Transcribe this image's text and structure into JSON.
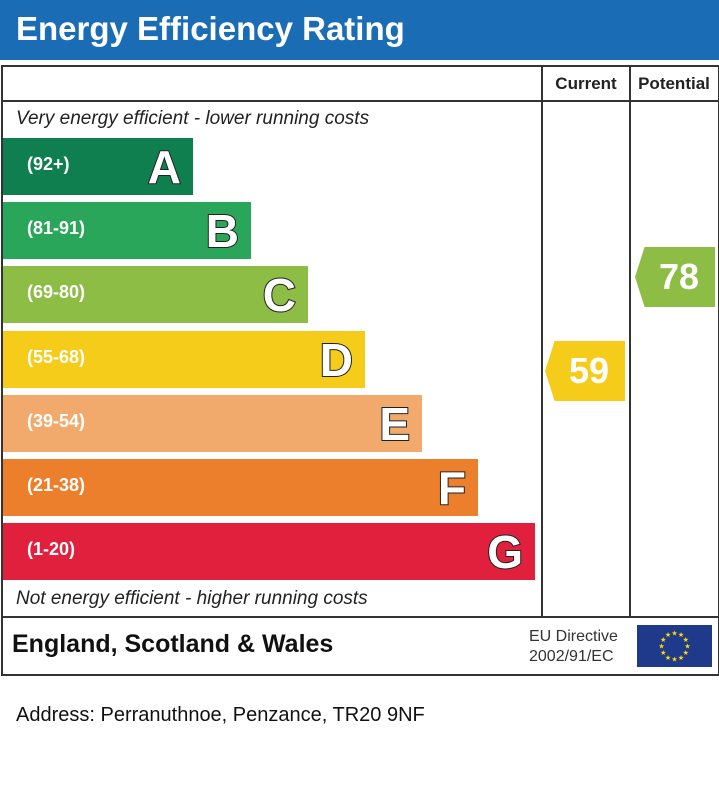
{
  "title": "Energy Efficiency Rating",
  "columns": {
    "current": "Current",
    "potential": "Potential"
  },
  "top_note": "Very energy efficient - lower running costs",
  "bottom_note": "Not energy efficient - higher running costs",
  "footer": {
    "country": "England, Scotland & Wales",
    "directive_line1": "EU Directive",
    "directive_line2": "2002/91/EC",
    "flag_icon": "eu-flag-icon"
  },
  "address": "Address: Perranuthnoe, Penzance, TR20 9NF",
  "chart_data": {
    "type": "bar",
    "title": "Energy Efficiency Rating",
    "bands": [
      {
        "letter": "A",
        "range": "(92+)",
        "color": "#0f7f4f"
      },
      {
        "letter": "B",
        "range": "(81-91)",
        "color": "#2aa65a"
      },
      {
        "letter": "C",
        "range": "(69-80)",
        "color": "#8dbd44"
      },
      {
        "letter": "D",
        "range": "(55-68)",
        "color": "#f5cc1a"
      },
      {
        "letter": "E",
        "range": "(39-54)",
        "color": "#f2aa6c"
      },
      {
        "letter": "F",
        "range": "(21-38)",
        "color": "#ec7f2b"
      },
      {
        "letter": "G",
        "range": "(1-20)",
        "color": "#e0203c"
      }
    ],
    "current": {
      "value": "59",
      "band": "D",
      "color": "#f5cc1a"
    },
    "potential": {
      "value": "78",
      "band": "C",
      "color": "#8dbd44"
    }
  }
}
